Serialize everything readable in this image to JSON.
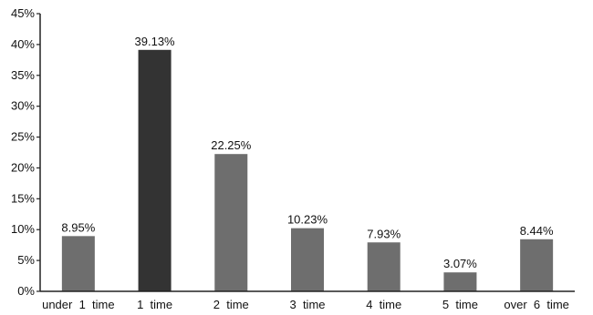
{
  "chart_data": {
    "type": "bar",
    "categories": [
      "under  1  time",
      "1  time",
      "2  time",
      "3  time",
      "4  time",
      "5  time",
      "over  6  time"
    ],
    "values": [
      8.95,
      39.13,
      22.25,
      10.23,
      7.93,
      3.07,
      8.44
    ],
    "value_labels": [
      "8.95%",
      "39.13%",
      "22.25%",
      "10.23%",
      "7.93%",
      "3.07%",
      "8.44%"
    ],
    "y_ticks": [
      0,
      5,
      10,
      15,
      20,
      25,
      30,
      35,
      40,
      45
    ],
    "y_tick_labels": [
      "0%",
      "5%",
      "10%",
      "15%",
      "20%",
      "25%",
      "30%",
      "35%",
      "40%",
      "45%"
    ],
    "ylim": [
      0,
      45
    ],
    "grid": false,
    "colors": {
      "bar": "#6e6e6e",
      "highlight_bar": "#333333",
      "highlight_index": 1,
      "axis": "#222222"
    }
  }
}
